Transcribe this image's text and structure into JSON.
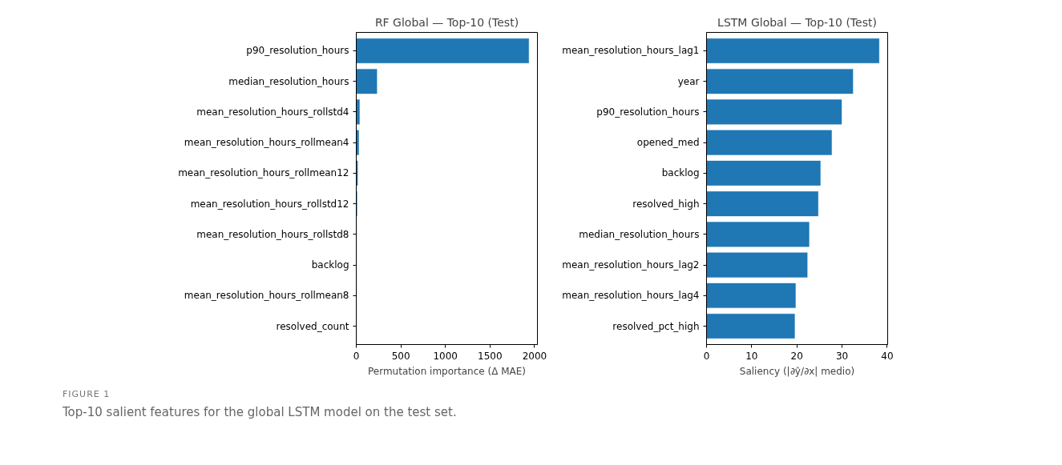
{
  "chart_data": [
    {
      "type": "bar",
      "orientation": "horizontal",
      "title": "RF Global — Top-10 (Test)",
      "xlabel": "Permutation importance (Δ MAE)",
      "categories": [
        "p90_resolution_hours",
        "median_resolution_hours",
        "mean_resolution_hours_rollstd4",
        "mean_resolution_hours_rollmean4",
        "mean_resolution_hours_rollmean12",
        "mean_resolution_hours_rollstd12",
        "mean_resolution_hours_rollstd8",
        "backlog",
        "mean_resolution_hours_rollmean8",
        "resolved_count"
      ],
      "values": [
        1935,
        231,
        36,
        27,
        15,
        8,
        0,
        0,
        0,
        0
      ],
      "color": "#1f77b4",
      "xlim": [
        0,
        2032
      ],
      "xticks": [
        0,
        500,
        1000,
        1500,
        2000
      ],
      "grid": false,
      "annotations": [
        "FIGURE 1",
        "Top-10 salient features for the global LSTM model on the test set."
      ]
    },
    {
      "type": "bar",
      "orientation": "horizontal",
      "title": "LSTM Global — Top-10 (Test)",
      "xlabel": "Saliency (|∂ŷ/∂x| medio)",
      "categories": [
        "mean_resolution_hours_lag1",
        "year",
        "p90_resolution_hours",
        "opened_med",
        "backlog",
        "resolved_high",
        "median_resolution_hours",
        "mean_resolution_hours_lag2",
        "mean_resolution_hours_lag4",
        "resolved_pct_high"
      ],
      "values": [
        38.2,
        32.4,
        29.9,
        27.7,
        25.2,
        24.7,
        22.7,
        22.3,
        19.7,
        19.5
      ],
      "color": "#1f77b4",
      "xlim": [
        0,
        40.1
      ],
      "xticks": [
        0,
        10,
        20,
        30,
        40
      ],
      "grid": false
    }
  ]
}
